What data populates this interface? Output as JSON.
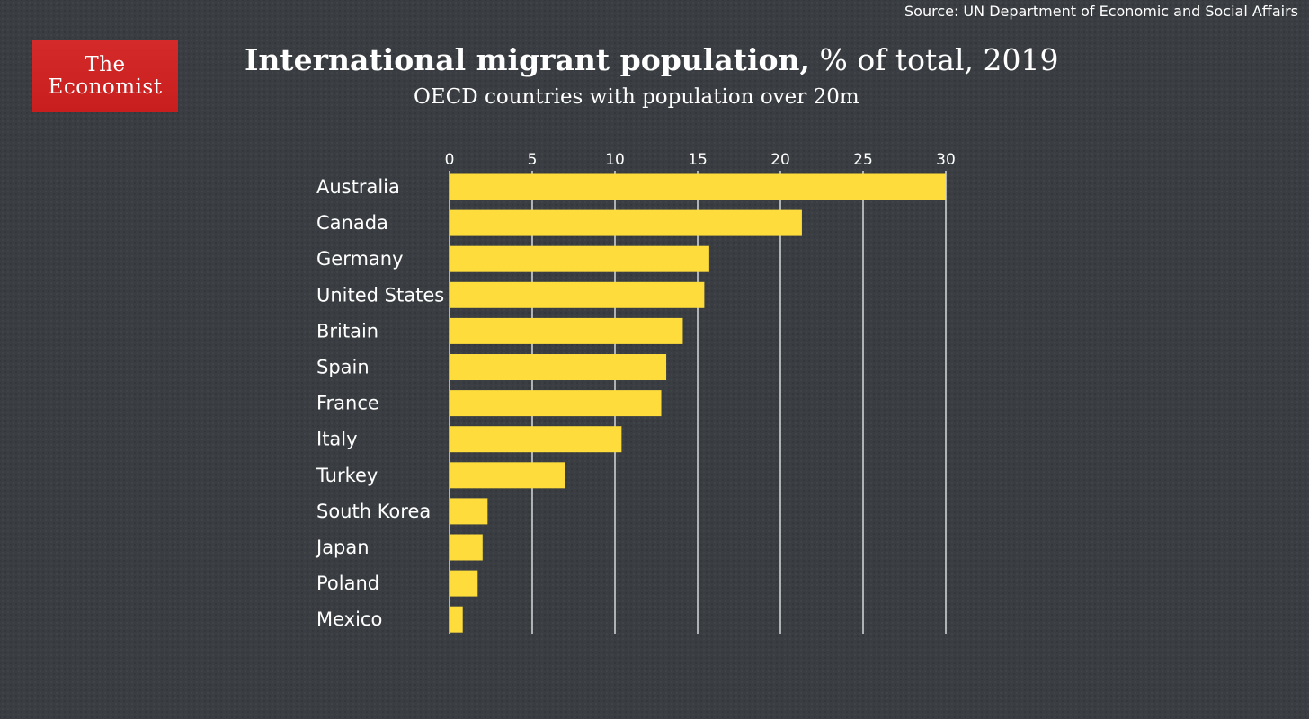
{
  "source": "Source: UN Department of Economic and Social Affairs",
  "logo": {
    "line1": "The",
    "line2": "Economist",
    "color": "#c81e1e"
  },
  "title": {
    "bold": "International migrant population,",
    "light": " % of total, 2019"
  },
  "subtitle": "OECD countries with population over 20m",
  "colors": {
    "background": "#3a3e42",
    "bar": "#fddc3c",
    "gridline": "#ffffff",
    "text": "#ffffff"
  },
  "chart_data": {
    "type": "bar",
    "orientation": "horizontal",
    "title": "International migrant population, % of total, 2019",
    "subtitle": "OECD countries with population over 20m",
    "categories": [
      "Australia",
      "Canada",
      "Germany",
      "United States",
      "Britain",
      "Spain",
      "France",
      "Italy",
      "Turkey",
      "South Korea",
      "Japan",
      "Poland",
      "Mexico"
    ],
    "values": [
      30.0,
      21.3,
      15.7,
      15.4,
      14.1,
      13.1,
      12.8,
      10.4,
      7.0,
      2.3,
      2.0,
      1.7,
      0.8
    ],
    "xlim": [
      0,
      30
    ],
    "ticks": [
      0,
      5,
      10,
      15,
      20,
      25,
      30
    ],
    "tick_labels": [
      "0",
      "5",
      "10",
      "15",
      "20",
      "25",
      "30"
    ],
    "axis_position": "top",
    "grid": true,
    "legend": "none"
  }
}
